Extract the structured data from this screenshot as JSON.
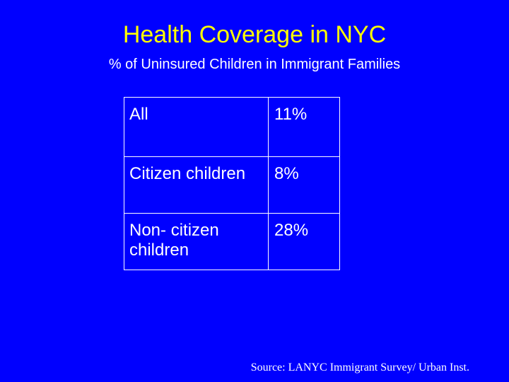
{
  "slide": {
    "title": "Health Coverage in NYC",
    "subtitle": "% of Uninsured Children in Immigrant Families",
    "table": {
      "rows": [
        {
          "label": "All",
          "value": "11%"
        },
        {
          "label": "Citizen children",
          "value": "8%"
        },
        {
          "label": "Non- citizen children",
          "value": "28%"
        }
      ]
    },
    "source": "Source: LANYC Immigrant Survey/ Urban Inst."
  },
  "colors": {
    "background": "#0000ff",
    "title": "#ffff00",
    "text": "#ffffff"
  }
}
